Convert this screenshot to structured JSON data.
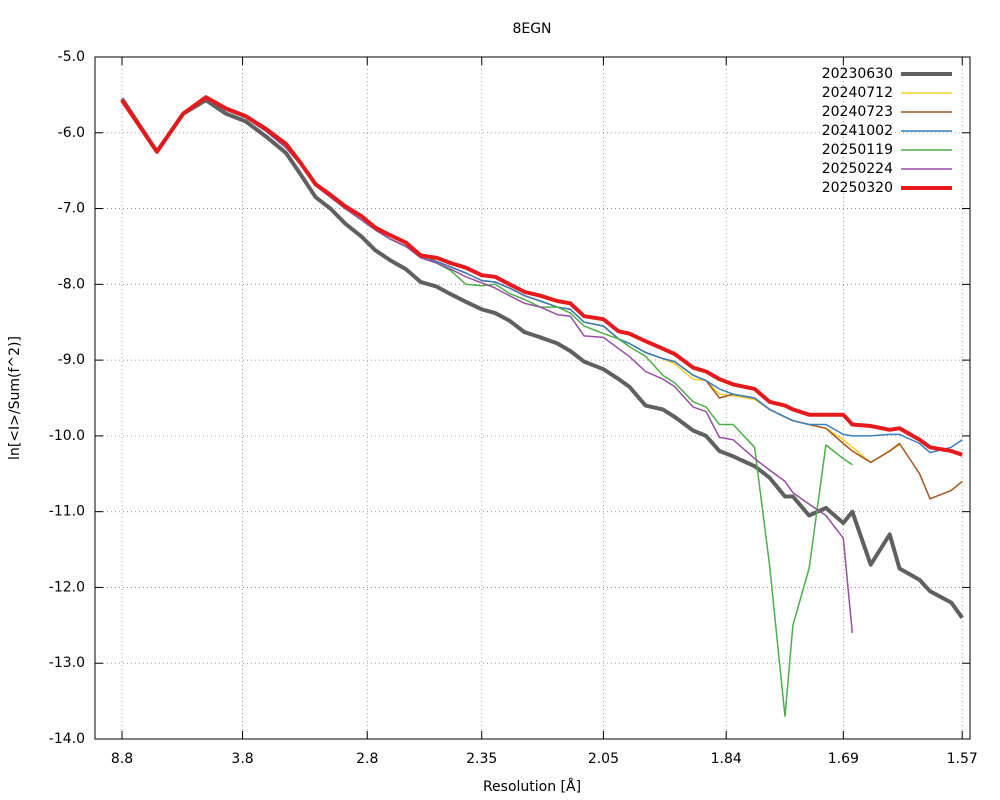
{
  "chart_data": {
    "type": "line",
    "title": "8EGN",
    "x_label": "Resolution [Å]",
    "y_label": "ln[<I>/Sum(f^2)]",
    "xscale": "inverse-square",
    "grid": true,
    "legend_position": "top-right",
    "x": [
      8.8,
      5.85,
      4.91,
      4.38,
      4.03,
      3.76,
      3.53,
      3.34,
      3.22,
      3.11,
      3.01,
      2.92,
      2.83,
      2.76,
      2.69,
      2.62,
      2.56,
      2.5,
      2.45,
      2.4,
      2.35,
      2.31,
      2.27,
      2.23,
      2.19,
      2.15,
      2.12,
      2.09,
      2.05,
      2.02,
      2.0,
      1.97,
      1.94,
      1.92,
      1.89,
      1.87,
      1.85,
      1.83,
      1.8,
      1.78,
      1.76,
      1.75,
      1.73,
      1.71,
      1.69,
      1.68,
      1.66,
      1.64,
      1.63,
      1.61,
      1.6,
      1.58,
      1.57
    ],
    "xlim": [
      60,
      1.563
    ],
    "xticks": [
      8.8,
      3.8,
      2.8,
      2.35,
      2.05,
      1.84,
      1.69,
      1.57
    ],
    "ylim": [
      -14,
      -5
    ],
    "yticks": [
      {
        "value": -5,
        "label": "-5.0"
      },
      {
        "value": -6,
        "label": "-6.0"
      },
      {
        "value": -7,
        "label": "-7.0"
      },
      {
        "value": -8,
        "label": "-8.0"
      },
      {
        "value": -9,
        "label": "-9.0"
      },
      {
        "value": -10,
        "label": "-10.0"
      },
      {
        "value": -11,
        "label": "-11.0"
      },
      {
        "value": -12,
        "label": "-12.0"
      },
      {
        "value": -13,
        "label": "-13.0"
      },
      {
        "value": -14,
        "label": "-14.0"
      }
    ],
    "series": [
      {
        "name": "20230630",
        "color": "#606060",
        "width": 4,
        "values": [
          -5.55,
          -6.25,
          -5.75,
          -5.57,
          -5.75,
          -5.85,
          -6.05,
          -6.27,
          -6.55,
          -6.85,
          -7.0,
          -7.2,
          -7.37,
          -7.55,
          -7.68,
          -7.8,
          -7.97,
          -8.03,
          -8.13,
          -8.23,
          -8.33,
          -8.38,
          -8.48,
          -8.63,
          -8.7,
          -8.78,
          -8.88,
          -9.02,
          -9.12,
          -9.25,
          -9.35,
          -9.6,
          -9.65,
          -9.75,
          -9.93,
          -10.0,
          -10.2,
          -10.27,
          -10.4,
          -10.55,
          -10.8,
          -10.8,
          -11.05,
          -10.95,
          -11.15,
          -11.0,
          -11.7,
          -11.3,
          -11.75,
          -11.9,
          -12.05,
          -12.2,
          -12.4
        ]
      },
      {
        "name": "20240712",
        "color": "#f5cf2a",
        "width": 1.5,
        "values": [
          -5.55,
          -6.25,
          -5.75,
          -5.55,
          -5.7,
          -5.8,
          -5.98,
          -6.2,
          -6.42,
          -6.7,
          -6.85,
          -7.0,
          -7.15,
          -7.28,
          -7.4,
          -7.5,
          -7.6,
          -7.7,
          -7.77,
          -7.85,
          -7.95,
          -7.97,
          -8.05,
          -8.15,
          -8.22,
          -8.3,
          -8.33,
          -8.5,
          -8.55,
          -8.72,
          -8.78,
          -8.9,
          -8.98,
          -9.05,
          -9.25,
          -9.27,
          -9.45,
          -9.47,
          -9.52,
          -9.65,
          -9.75,
          -9.8,
          -9.85,
          -9.9,
          -10.05,
          -10.15,
          -10.35,
          -10.2,
          -10.12,
          null,
          null,
          null,
          null
        ]
      },
      {
        "name": "20240723",
        "color": "#a6561d",
        "width": 1.5,
        "values": [
          -5.55,
          -6.25,
          -5.75,
          -5.55,
          -5.7,
          -5.8,
          -5.98,
          -6.2,
          -6.42,
          -6.7,
          -6.85,
          -7.0,
          -7.15,
          -7.28,
          -7.4,
          -7.5,
          -7.6,
          -7.7,
          -7.77,
          -7.85,
          -7.95,
          -7.97,
          -8.05,
          -8.15,
          -8.22,
          -8.3,
          -8.33,
          -8.5,
          -8.55,
          -8.72,
          -8.78,
          -8.9,
          -8.98,
          -9.02,
          -9.2,
          -9.27,
          -9.5,
          -9.45,
          -9.5,
          -9.65,
          -9.75,
          -9.8,
          -9.85,
          -9.9,
          -10.1,
          -10.2,
          -10.35,
          -10.2,
          -10.1,
          -10.5,
          -10.83,
          -10.72,
          -10.6
        ]
      },
      {
        "name": "20241002",
        "color": "#3a7fc1",
        "width": 1.5,
        "values": [
          -5.55,
          -6.25,
          -5.75,
          -5.55,
          -5.7,
          -5.8,
          -5.98,
          -6.2,
          -6.42,
          -6.7,
          -6.85,
          -7.0,
          -7.15,
          -7.28,
          -7.4,
          -7.5,
          -7.65,
          -7.7,
          -7.77,
          -7.85,
          -7.95,
          -7.97,
          -8.05,
          -8.15,
          -8.22,
          -8.3,
          -8.33,
          -8.5,
          -8.55,
          -8.72,
          -8.78,
          -8.9,
          -8.98,
          -9.02,
          -9.2,
          -9.27,
          -9.38,
          -9.45,
          -9.5,
          -9.65,
          -9.75,
          -9.8,
          -9.85,
          -9.85,
          -9.98,
          -10.0,
          -10.0,
          -9.98,
          -9.98,
          -10.1,
          -10.22,
          -10.15,
          -10.05
        ]
      },
      {
        "name": "20250119",
        "color": "#4daf4a",
        "width": 1.5,
        "values": [
          -5.55,
          -6.25,
          -5.75,
          -5.55,
          -5.7,
          -5.8,
          -5.98,
          -6.2,
          -6.42,
          -6.7,
          -6.85,
          -7.0,
          -7.15,
          -7.28,
          -7.4,
          -7.5,
          -7.65,
          -7.72,
          -7.82,
          -8.0,
          -8.02,
          -8.0,
          -8.12,
          -8.2,
          -8.3,
          -8.3,
          -8.38,
          -8.55,
          -8.65,
          -8.72,
          -8.82,
          -8.95,
          -9.2,
          -9.3,
          -9.55,
          -9.62,
          -9.85,
          -9.85,
          -10.15,
          -11.7,
          -13.7,
          -12.5,
          -11.75,
          -10.12,
          -10.3,
          -10.38,
          null,
          null,
          null,
          null,
          null,
          null,
          null
        ]
      },
      {
        "name": "20250224",
        "color": "#984ea3",
        "width": 1.5,
        "values": [
          -5.55,
          -6.25,
          -5.75,
          -5.55,
          -5.7,
          -5.8,
          -5.98,
          -6.2,
          -6.42,
          -6.7,
          -6.85,
          -7.0,
          -7.15,
          -7.28,
          -7.4,
          -7.5,
          -7.65,
          -7.72,
          -7.8,
          -7.9,
          -7.98,
          -8.05,
          -8.15,
          -8.25,
          -8.3,
          -8.4,
          -8.42,
          -8.68,
          -8.7,
          -8.85,
          -8.95,
          -9.15,
          -9.25,
          -9.35,
          -9.62,
          -9.68,
          -10.02,
          -10.05,
          -10.3,
          -10.45,
          -10.6,
          -10.75,
          -10.9,
          -11.05,
          -11.35,
          -12.6,
          null,
          null,
          null,
          null,
          null,
          null,
          null
        ]
      },
      {
        "name": "20250320",
        "color": "#e41a1c",
        "width": 4,
        "values": [
          -5.57,
          -6.25,
          -5.75,
          -5.53,
          -5.68,
          -5.78,
          -5.95,
          -6.15,
          -6.4,
          -6.68,
          -6.82,
          -6.97,
          -7.1,
          -7.25,
          -7.35,
          -7.45,
          -7.62,
          -7.65,
          -7.72,
          -7.78,
          -7.88,
          -7.9,
          -8.0,
          -8.1,
          -8.15,
          -8.22,
          -8.25,
          -8.42,
          -8.46,
          -8.62,
          -8.65,
          -8.75,
          -8.85,
          -8.92,
          -9.1,
          -9.15,
          -9.25,
          -9.32,
          -9.38,
          -9.55,
          -9.6,
          -9.65,
          -9.72,
          -9.72,
          -9.72,
          -9.85,
          -9.87,
          -9.92,
          -9.9,
          -10.05,
          -10.15,
          -10.2,
          -10.25
        ]
      }
    ]
  }
}
